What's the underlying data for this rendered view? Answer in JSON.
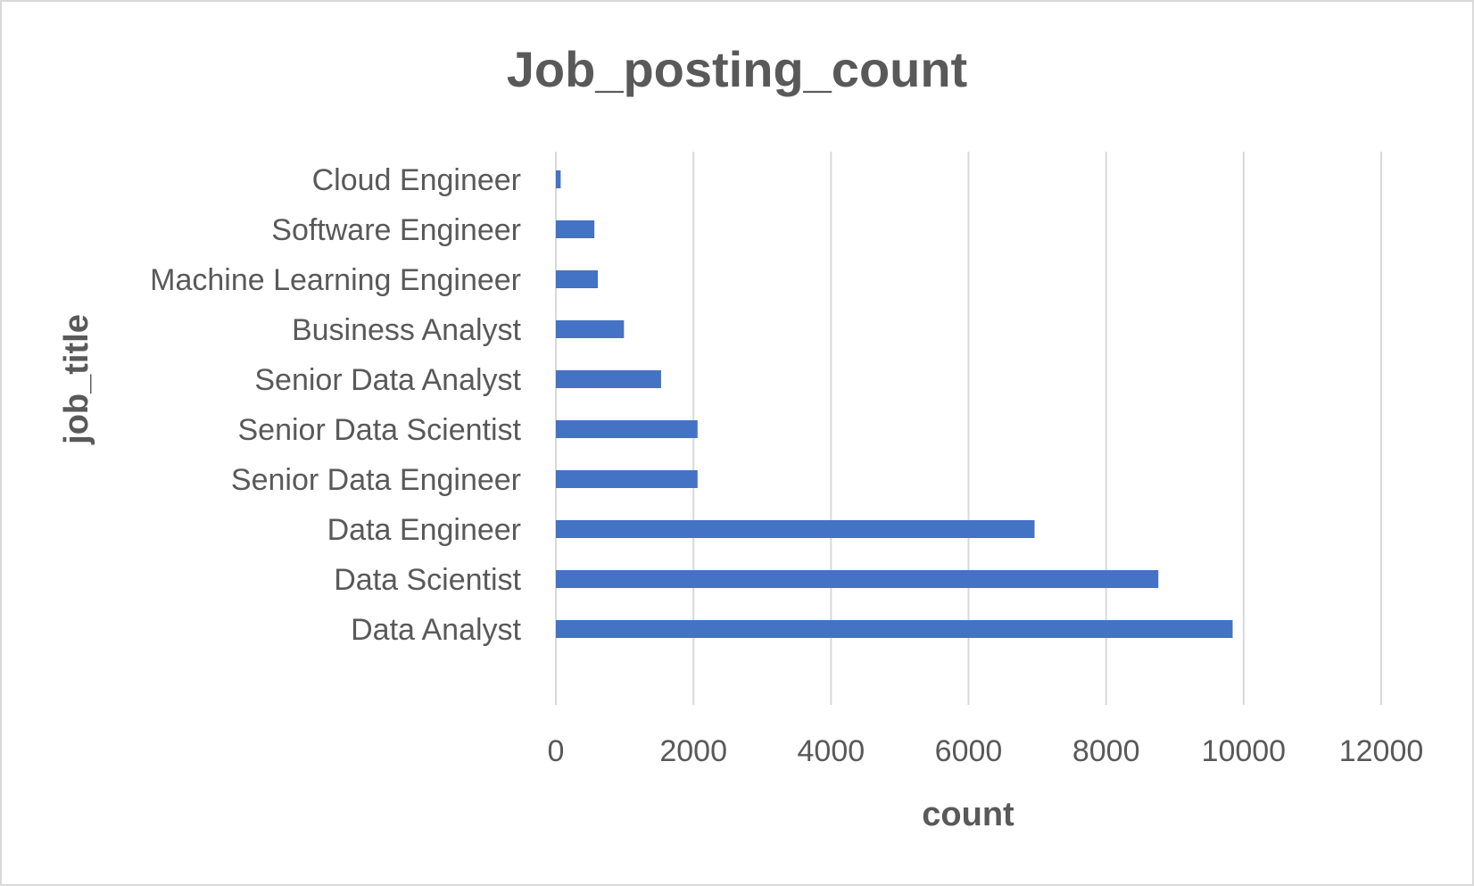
{
  "chart_data": {
    "type": "bar",
    "orientation": "horizontal",
    "title": "Job_posting_count",
    "xlabel": "count",
    "ylabel": "job_title",
    "categories": [
      "Data Analyst",
      "Data Scientist",
      "Data Engineer",
      "Senior Data Engineer",
      "Senior Data Scientist",
      "Senior Data Analyst",
      "Business Analyst",
      "Machine Learning Engineer",
      "Software Engineer",
      "Cloud Engineer"
    ],
    "values": [
      9840,
      8760,
      6960,
      2060,
      2060,
      1530,
      990,
      610,
      560,
      70
    ],
    "xlim": [
      0,
      12000
    ],
    "xticks": [
      0,
      2000,
      4000,
      6000,
      8000,
      10000,
      12000
    ],
    "grid": "vertical",
    "legend": "none",
    "bar_color": "#4472c4"
  }
}
